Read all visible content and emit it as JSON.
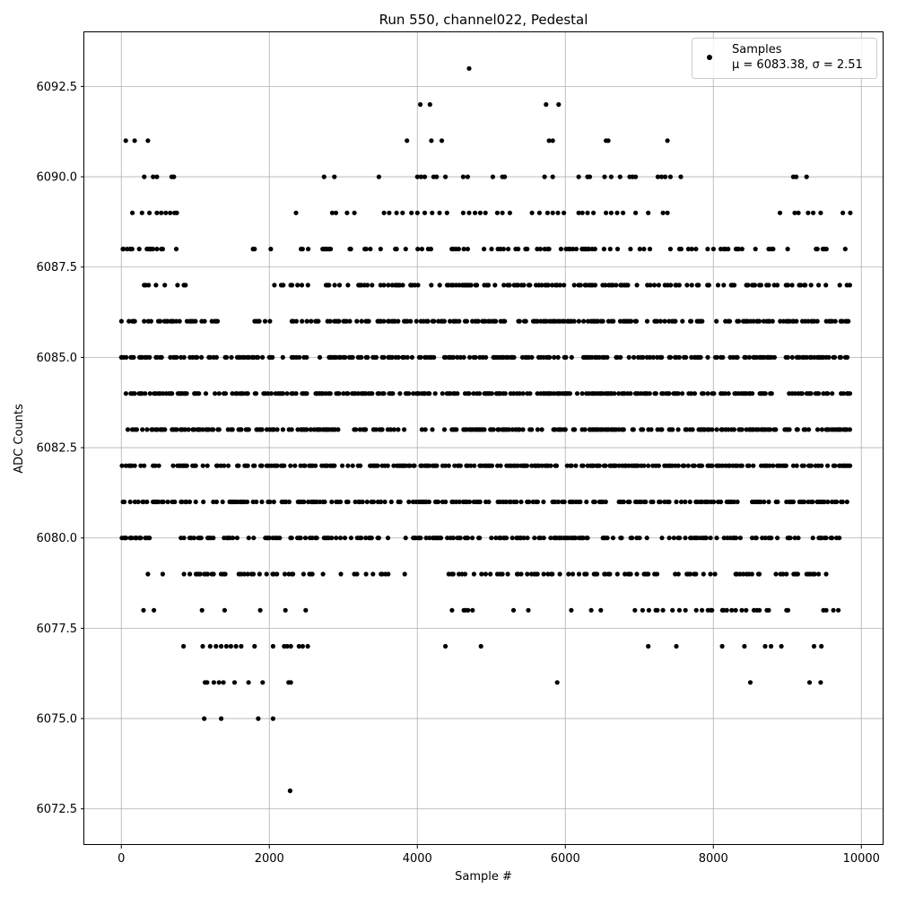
{
  "chart_data": {
    "type": "scatter",
    "title": "Run 550, channel022, Pedestal",
    "xlabel": "Sample #",
    "ylabel": "ADC Counts",
    "xlim": [
      -500,
      10300
    ],
    "ylim": [
      6071.5,
      6094.0
    ],
    "xticks": [
      0,
      2000,
      4000,
      6000,
      8000,
      10000
    ],
    "xtick_labels": [
      "0",
      "2000",
      "4000",
      "6000",
      "8000",
      "10000"
    ],
    "yticks": [
      6072.5,
      6075.0,
      6077.5,
      6080.0,
      6082.5,
      6085.0,
      6087.5,
      6090.0,
      6092.5
    ],
    "ytick_labels": [
      "6072.5",
      "6075.0",
      "6077.5",
      "6080.0",
      "6082.5",
      "6085.0",
      "6087.5",
      "6090.0",
      "6092.5"
    ],
    "grid": true,
    "legend_position": "top-right",
    "series": [
      {
        "name": "Samples",
        "stats_label": "μ = 6083.38, σ = 2.51",
        "color": "#000000",
        "n_samples": 9850,
        "x_start": 0,
        "x_end": 9850,
        "levels": [
          {
            "y": 6081,
            "density": 0.45,
            "ranges": [
              [
                0,
                9850
              ]
            ]
          },
          {
            "y": 6082,
            "density": 0.5,
            "ranges": [
              [
                0,
                9850
              ]
            ]
          },
          {
            "y": 6083,
            "density": 0.5,
            "ranges": [
              [
                0,
                9850
              ]
            ]
          },
          {
            "y": 6084,
            "density": 0.5,
            "ranges": [
              [
                0,
                9850
              ]
            ]
          },
          {
            "y": 6085,
            "density": 0.5,
            "ranges": [
              [
                0,
                1300
              ],
              [
                1400,
                2200
              ],
              [
                2300,
                9850
              ]
            ]
          },
          {
            "y": 6086,
            "density": 0.45,
            "ranges": [
              [
                0,
                1300
              ],
              [
                1800,
                2000
              ],
              [
                2300,
                9850
              ]
            ]
          },
          {
            "y": 6080,
            "density": 0.4,
            "ranges": [
              [
                0,
                400
              ],
              [
                800,
                3600
              ],
              [
                3800,
                9850
              ]
            ]
          },
          {
            "y": 6087,
            "density": 0.35,
            "ranges": [
              [
                0,
                1050
              ],
              [
                2000,
                9850
              ]
            ]
          },
          {
            "y": 6079,
            "density": 0.3,
            "ranges": [
              [
                0,
                80
              ],
              [
                800,
                3600
              ],
              [
                4300,
                9800
              ]
            ]
          },
          {
            "y": 6088,
            "density": 0.25,
            "ranges": [
              [
                20,
                780
              ],
              [
                2400,
                9800
              ]
            ]
          },
          {
            "y": 6078,
            "density": 0.15,
            "ranges": [
              [
                850,
                2600
              ],
              [
                4400,
                4800
              ],
              [
                6900,
                9750
              ]
            ]
          }
        ],
        "points": [
          [
            2280,
            6073
          ],
          [
            4700,
            6093
          ],
          [
            1120,
            6075
          ],
          [
            1350,
            6075
          ],
          [
            1850,
            6075
          ],
          [
            2050,
            6075
          ],
          [
            1130,
            6076
          ],
          [
            1160,
            6076
          ],
          [
            1250,
            6076
          ],
          [
            1320,
            6076
          ],
          [
            1380,
            6076
          ],
          [
            1530,
            6076
          ],
          [
            1720,
            6076
          ],
          [
            1910,
            6076
          ],
          [
            2260,
            6076
          ],
          [
            2290,
            6076
          ],
          [
            5890,
            6076
          ],
          [
            8500,
            6076
          ],
          [
            9300,
            6076
          ],
          [
            9450,
            6076
          ],
          [
            840,
            6077
          ],
          [
            1100,
            6077
          ],
          [
            1200,
            6077
          ],
          [
            1280,
            6077
          ],
          [
            1350,
            6077
          ],
          [
            1420,
            6077
          ],
          [
            1480,
            6077
          ],
          [
            1550,
            6077
          ],
          [
            1620,
            6077
          ],
          [
            1800,
            6077
          ],
          [
            2050,
            6077
          ],
          [
            2200,
            6077
          ],
          [
            2240,
            6077
          ],
          [
            2290,
            6077
          ],
          [
            2400,
            6077
          ],
          [
            2450,
            6077
          ],
          [
            2520,
            6077
          ],
          [
            4380,
            6077
          ],
          [
            4860,
            6077
          ],
          [
            7120,
            6077
          ],
          [
            7500,
            6077
          ],
          [
            8120,
            6077
          ],
          [
            8420,
            6077
          ],
          [
            8700,
            6077
          ],
          [
            8780,
            6077
          ],
          [
            8920,
            6077
          ],
          [
            9360,
            6077
          ],
          [
            9460,
            6077
          ],
          [
            300,
            6078
          ],
          [
            440,
            6078
          ],
          [
            5300,
            6078
          ],
          [
            5500,
            6078
          ],
          [
            6080,
            6078
          ],
          [
            6350,
            6078
          ],
          [
            6480,
            6078
          ],
          [
            360,
            6079
          ],
          [
            560,
            6079
          ],
          [
            3830,
            6079
          ],
          [
            5150,
            6079
          ],
          [
            5580,
            6079
          ],
          [
            40,
            6080
          ],
          [
            120,
            6080
          ],
          [
            200,
            6080
          ],
          [
            250,
            6080
          ],
          [
            330,
            6080
          ],
          [
            4020,
            6080
          ],
          [
            5850,
            6080
          ],
          [
            5920,
            6080
          ],
          [
            30,
            6088
          ],
          [
            80,
            6088
          ],
          [
            120,
            6088
          ],
          [
            1780,
            6088
          ],
          [
            1800,
            6088
          ],
          [
            2020,
            6088
          ],
          [
            150,
            6089
          ],
          [
            280,
            6089
          ],
          [
            380,
            6089
          ],
          [
            480,
            6089
          ],
          [
            540,
            6089
          ],
          [
            600,
            6089
          ],
          [
            660,
            6089
          ],
          [
            720,
            6089
          ],
          [
            750,
            6089
          ],
          [
            2360,
            6089
          ],
          [
            2850,
            6089
          ],
          [
            2900,
            6089
          ],
          [
            3050,
            6089
          ],
          [
            3150,
            6089
          ],
          [
            3550,
            6089
          ],
          [
            3620,
            6089
          ],
          [
            3720,
            6089
          ],
          [
            3800,
            6089
          ],
          [
            3920,
            6089
          ],
          [
            4000,
            6089
          ],
          [
            4100,
            6089
          ],
          [
            4200,
            6089
          ],
          [
            4300,
            6089
          ],
          [
            4400,
            6089
          ],
          [
            4620,
            6089
          ],
          [
            4700,
            6089
          ],
          [
            4780,
            6089
          ],
          [
            4850,
            6089
          ],
          [
            4920,
            6089
          ],
          [
            5080,
            6089
          ],
          [
            5150,
            6089
          ],
          [
            5250,
            6089
          ],
          [
            5550,
            6089
          ],
          [
            5650,
            6089
          ],
          [
            5760,
            6089
          ],
          [
            5830,
            6089
          ],
          [
            5900,
            6089
          ],
          [
            5980,
            6089
          ],
          [
            6180,
            6089
          ],
          [
            6230,
            6089
          ],
          [
            6300,
            6089
          ],
          [
            6380,
            6089
          ],
          [
            6550,
            6089
          ],
          [
            6620,
            6089
          ],
          [
            6700,
            6089
          ],
          [
            6780,
            6089
          ],
          [
            6950,
            6089
          ],
          [
            7120,
            6089
          ],
          [
            7320,
            6089
          ],
          [
            7380,
            6089
          ],
          [
            8900,
            6089
          ],
          [
            9100,
            6089
          ],
          [
            9150,
            6089
          ],
          [
            9280,
            6089
          ],
          [
            9350,
            6089
          ],
          [
            9450,
            6089
          ],
          [
            9750,
            6089
          ],
          [
            9850,
            6089
          ],
          [
            310,
            6090
          ],
          [
            430,
            6090
          ],
          [
            480,
            6090
          ],
          [
            680,
            6090
          ],
          [
            710,
            6090
          ],
          [
            2740,
            6090
          ],
          [
            2880,
            6090
          ],
          [
            3480,
            6090
          ],
          [
            4000,
            6090
          ],
          [
            4050,
            6090
          ],
          [
            4100,
            6090
          ],
          [
            4220,
            6090
          ],
          [
            4260,
            6090
          ],
          [
            4380,
            6090
          ],
          [
            4620,
            6090
          ],
          [
            4680,
            6090
          ],
          [
            5020,
            6090
          ],
          [
            5150,
            6090
          ],
          [
            5180,
            6090
          ],
          [
            5720,
            6090
          ],
          [
            5830,
            6090
          ],
          [
            6180,
            6090
          ],
          [
            6300,
            6090
          ],
          [
            6330,
            6090
          ],
          [
            6530,
            6090
          ],
          [
            6620,
            6090
          ],
          [
            6740,
            6090
          ],
          [
            6870,
            6090
          ],
          [
            6910,
            6090
          ],
          [
            6950,
            6090
          ],
          [
            7250,
            6090
          ],
          [
            7300,
            6090
          ],
          [
            7350,
            6090
          ],
          [
            7420,
            6090
          ],
          [
            7560,
            6090
          ],
          [
            9080,
            6090
          ],
          [
            9120,
            6090
          ],
          [
            9260,
            6090
          ],
          [
            60,
            6091
          ],
          [
            180,
            6091
          ],
          [
            360,
            6091
          ],
          [
            3860,
            6091
          ],
          [
            4190,
            6091
          ],
          [
            4330,
            6091
          ],
          [
            5780,
            6091
          ],
          [
            5830,
            6091
          ],
          [
            6550,
            6091
          ],
          [
            6580,
            6091
          ],
          [
            7380,
            6091
          ],
          [
            4040,
            6092
          ],
          [
            4170,
            6092
          ],
          [
            5740,
            6092
          ],
          [
            5910,
            6092
          ]
        ]
      }
    ]
  }
}
